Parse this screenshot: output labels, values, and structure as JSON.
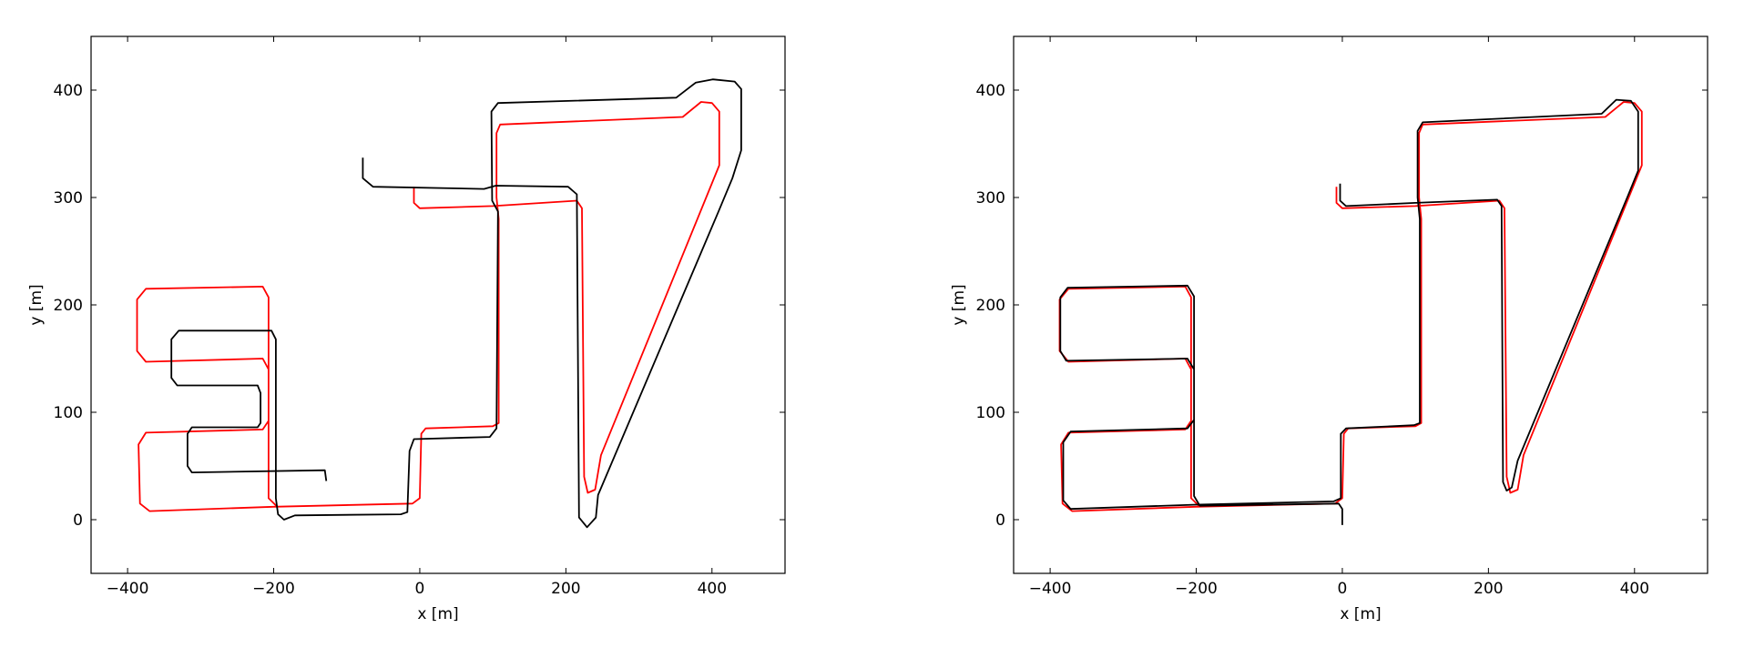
{
  "chart_data": [
    {
      "type": "line",
      "xlabel": "x [m]",
      "ylabel": "y [m]",
      "xlim": [
        -450,
        500
      ],
      "ylim": [
        -50,
        450
      ],
      "xticks": [
        {
          "value": -400,
          "label": "−400"
        },
        {
          "value": -200,
          "label": "−200"
        },
        0,
        200,
        400
      ],
      "yticks": [
        0,
        100,
        200,
        300,
        400
      ],
      "series": [
        {
          "color": "#ff0000",
          "x": [
            -8,
            -8,
            0,
            100,
            215,
            222,
            225,
            230,
            240,
            248,
            395,
            410,
            410,
            400,
            385,
            360,
            110,
            105,
            105,
            108,
            108,
            100,
            8,
            2,
            0,
            -10,
            -200,
            -370,
            -383,
            -385,
            -375,
            -215,
            -207,
            -207,
            -215,
            -375,
            -387,
            -387,
            -375,
            -215,
            -207,
            -207,
            -195
          ],
          "y": [
            310,
            295,
            290,
            292,
            297,
            290,
            40,
            25,
            28,
            60,
            305,
            330,
            380,
            388,
            389,
            375,
            368,
            360,
            300,
            280,
            90,
            87,
            85,
            80,
            20,
            15,
            12,
            8,
            15,
            70,
            81,
            84,
            92,
            140,
            150,
            147,
            157,
            205,
            215,
            217,
            207,
            20,
            12
          ]
        },
        {
          "color": "#000000",
          "x": [
            -78,
            -78,
            -64,
            88,
            104,
            203,
            215,
            218,
            229,
            241,
            244,
            409,
            428,
            440,
            440,
            431,
            401,
            378,
            351,
            107,
            98,
            99,
            107,
            105,
            96,
            -8,
            -14,
            -17,
            -26,
            -171,
            -186,
            -194,
            -197,
            -197,
            -203,
            -330,
            -340,
            -340,
            -332,
            -222,
            -218,
            -218,
            -222,
            -312,
            -318,
            -318,
            -312,
            -130,
            -128
          ],
          "y": [
            337,
            318,
            310,
            308,
            311,
            310,
            303,
            2,
            -7,
            2,
            23,
            287,
            318,
            344,
            401,
            408,
            410,
            407,
            393,
            388,
            380,
            297,
            287,
            85,
            77,
            75,
            64,
            7,
            5,
            4,
            0,
            5,
            20,
            168,
            176,
            176,
            168,
            132,
            125,
            125,
            118,
            90,
            86,
            86,
            80,
            50,
            44,
            46,
            36
          ]
        }
      ]
    },
    {
      "type": "line",
      "xlabel": "x [m]",
      "ylabel": "y [m]",
      "xlim": [
        -450,
        500
      ],
      "ylim": [
        -50,
        450
      ],
      "xticks": [
        {
          "value": -400,
          "label": "−400"
        },
        {
          "value": -200,
          "label": "−200"
        },
        0,
        200,
        400
      ],
      "yticks": [
        0,
        100,
        200,
        300,
        400
      ],
      "series": [
        {
          "color": "#ff0000",
          "x": [
            -8,
            -8,
            0,
            100,
            215,
            222,
            225,
            230,
            240,
            248,
            395,
            410,
            410,
            400,
            385,
            360,
            110,
            105,
            105,
            108,
            108,
            100,
            8,
            2,
            0,
            -10,
            -200,
            -370,
            -383,
            -385,
            -375,
            -215,
            -207,
            -207,
            -215,
            -375,
            -387,
            -387,
            -375,
            -215,
            -207,
            -207,
            -195
          ],
          "y": [
            310,
            295,
            290,
            292,
            297,
            290,
            40,
            25,
            28,
            60,
            305,
            330,
            380,
            388,
            389,
            375,
            368,
            360,
            300,
            280,
            90,
            87,
            85,
            80,
            20,
            15,
            12,
            8,
            15,
            70,
            81,
            84,
            92,
            140,
            150,
            147,
            157,
            205,
            215,
            217,
            207,
            20,
            12
          ]
        },
        {
          "color": "#000000",
          "x": [
            -3,
            -3,
            5,
            100,
            212,
            218,
            220,
            225,
            232,
            240,
            390,
            405,
            405,
            395,
            375,
            355,
            110,
            103,
            103,
            106,
            106,
            98,
            5,
            -2,
            -2,
            -12,
            -200,
            -372,
            -382,
            -382,
            -372,
            -212,
            -203,
            -203,
            -212,
            -378,
            -386,
            -386,
            -376,
            -212,
            -203,
            -203,
            -195,
            -5,
            0,
            0
          ],
          "y": [
            313,
            297,
            292,
            295,
            298,
            292,
            35,
            27,
            30,
            55,
            300,
            325,
            380,
            390,
            391,
            378,
            370,
            362,
            300,
            280,
            90,
            88,
            85,
            80,
            20,
            17,
            14,
            10,
            18,
            72,
            82,
            85,
            93,
            140,
            150,
            148,
            157,
            207,
            216,
            218,
            208,
            22,
            13,
            15,
            10,
            -5
          ]
        }
      ]
    }
  ]
}
